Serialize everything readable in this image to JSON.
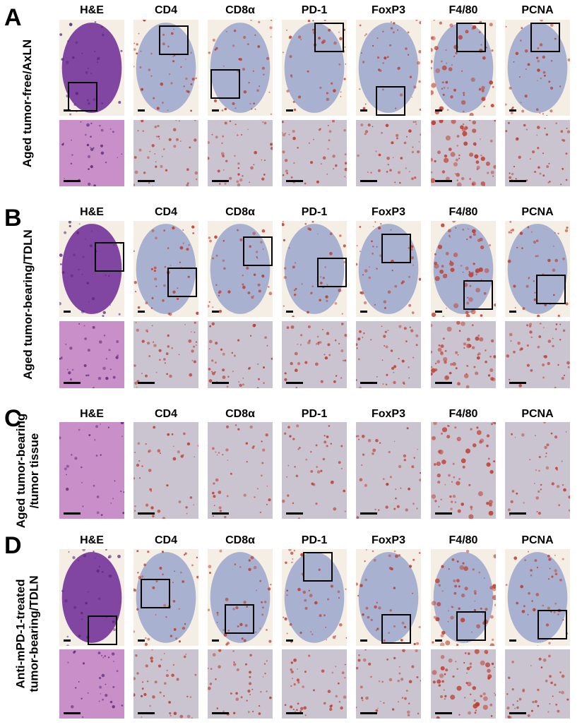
{
  "panels": [
    {
      "letter": "A",
      "label": "Aged tumor-free/AxLN"
    },
    {
      "letter": "B",
      "label": "Aged tumor-bearing/TDLN"
    },
    {
      "letter": "C",
      "label": "Aged tumor-bearing\n/tumor tissue"
    },
    {
      "letter": "D",
      "label": "Anti-mPD-1-treated\ntumor-bearing/TDLN"
    }
  ],
  "columns": [
    "H&E",
    "CD4",
    "CD8α",
    "PD-1",
    "FoxP3",
    "F4/80",
    "PCNA"
  ],
  "colors": {
    "he_purple": "#7a3b9e",
    "he_pink": "#c98fc8",
    "hematoxylin_blue": "#8f9cc8",
    "dab_red": "#c0392b",
    "background": "#f4eee4"
  }
}
